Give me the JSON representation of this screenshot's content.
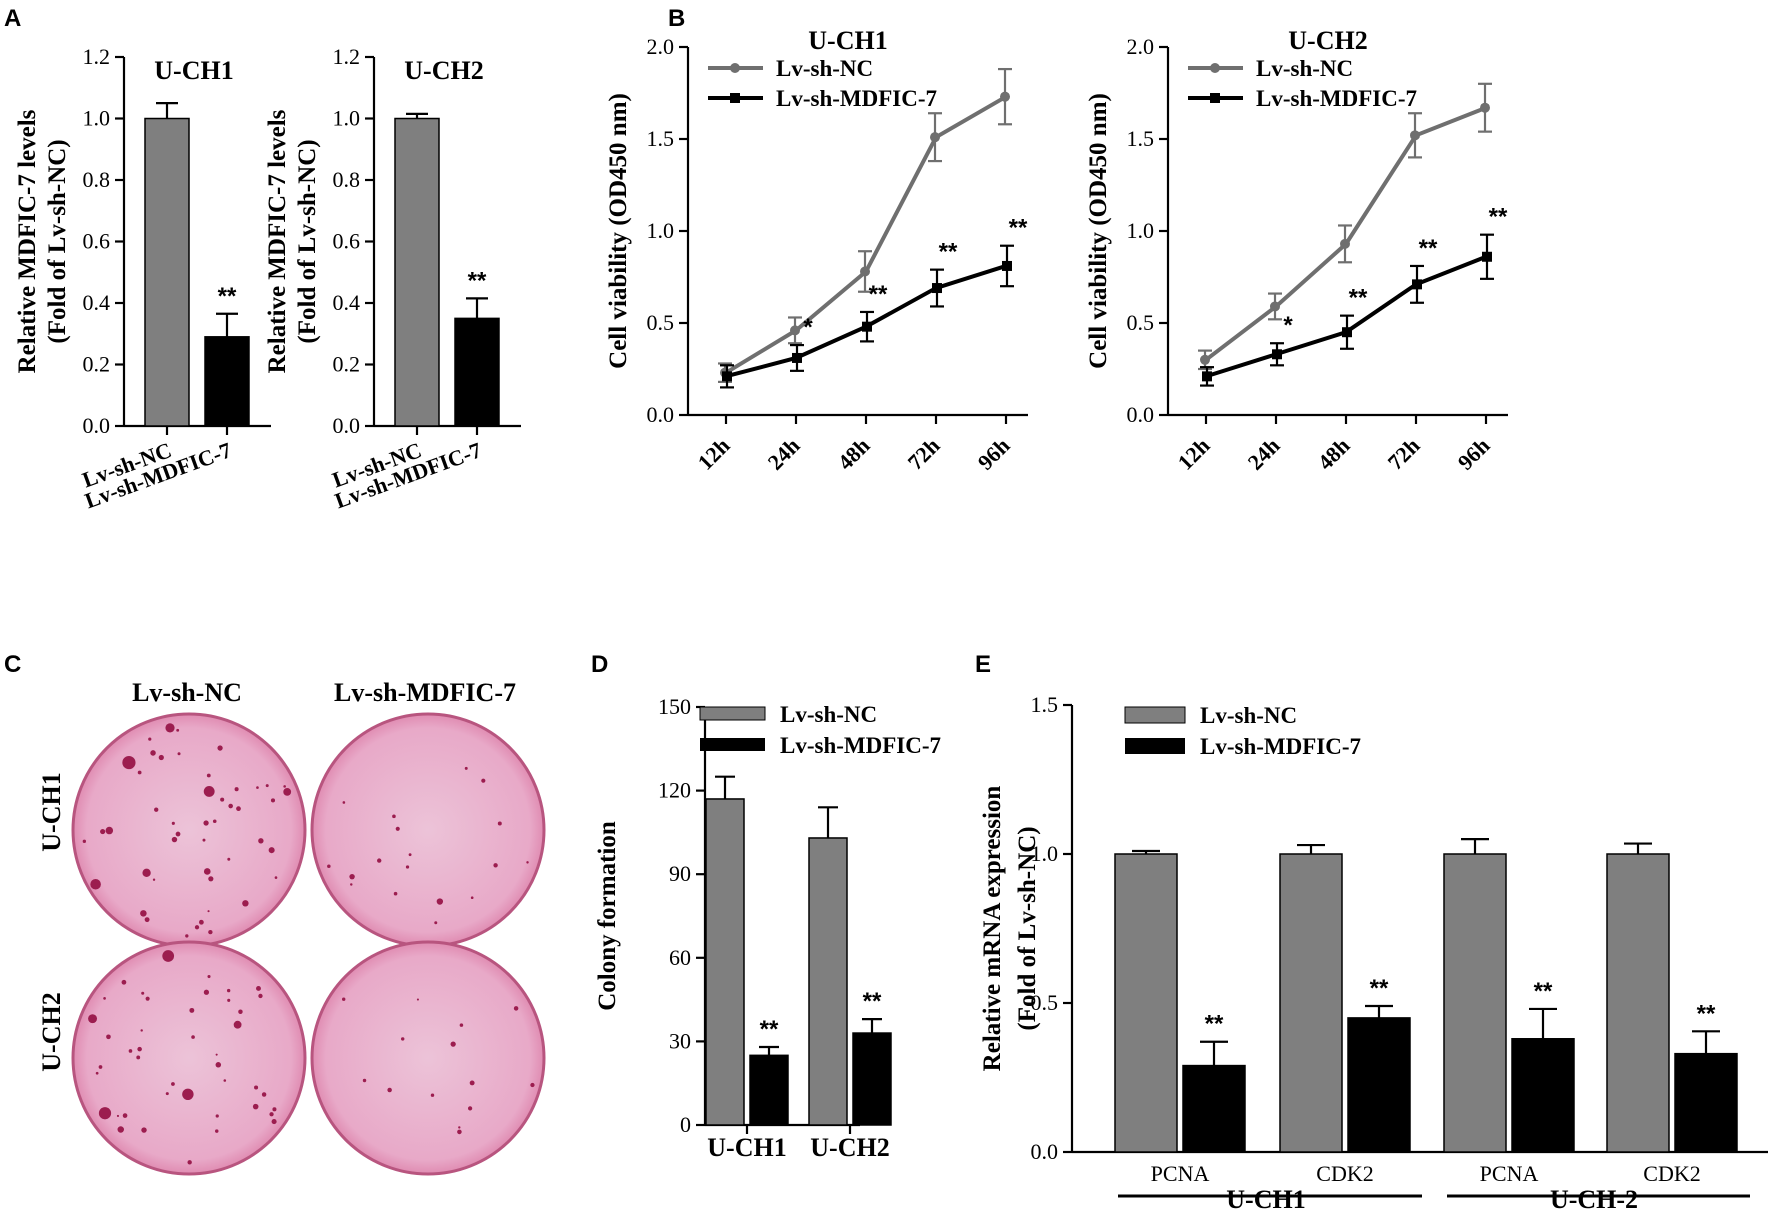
{
  "figure": {
    "panel_labels": [
      "A",
      "B",
      "C",
      "D",
      "E"
    ]
  },
  "colors": {
    "nc": "#7f7f7f",
    "md": "#000000",
    "nc_line": "#6f6f6f",
    "dish_bg": "#e8a9c8",
    "dish_edge": "#b8557f",
    "colony": "#9c1d4f"
  },
  "chart_data": [
    {
      "id": "A1",
      "type": "bar",
      "title": "U-CH1",
      "categories": [
        "Lv-sh-NC",
        "Lv-sh-MDFIC-7"
      ],
      "values": [
        1.0,
        0.29
      ],
      "errors": [
        0.05,
        0.075
      ],
      "significance": [
        "",
        "**"
      ],
      "ylabel": "Relative MDFIC-7 levels",
      "ylabel2": "(Fold of Lv-sh-NC)",
      "ylim": [
        0,
        1.2
      ],
      "yticks": [
        "0.0",
        "0.2",
        "0.4",
        "0.6",
        "0.8",
        "1.0",
        "1.2"
      ]
    },
    {
      "id": "A2",
      "type": "bar",
      "title": "U-CH2",
      "categories": [
        "Lv-sh-NC",
        "Lv-sh-MDFIC-7"
      ],
      "values": [
        1.0,
        0.35
      ],
      "errors": [
        0.015,
        0.065
      ],
      "significance": [
        "",
        "**"
      ],
      "ylabel": "Relative MDFIC-7 levels",
      "ylabel2": "(Fold of Lv-sh-NC)",
      "ylim": [
        0,
        1.2
      ],
      "yticks": [
        "0.0",
        "0.2",
        "0.4",
        "0.6",
        "0.8",
        "1.0",
        "1.2"
      ]
    },
    {
      "id": "B1",
      "type": "line",
      "title": "U-CH1",
      "x": [
        "12h",
        "24h",
        "48h",
        "72h",
        "96h"
      ],
      "series": [
        {
          "name": "Lv-sh-NC",
          "values": [
            0.23,
            0.46,
            0.78,
            1.51,
            1.73
          ],
          "errors": [
            0.05,
            0.07,
            0.11,
            0.13,
            0.15
          ]
        },
        {
          "name": "Lv-sh-MDFIC-7",
          "values": [
            0.21,
            0.31,
            0.48,
            0.69,
            0.81
          ],
          "errors": [
            0.06,
            0.07,
            0.08,
            0.1,
            0.11
          ]
        }
      ],
      "significance": [
        "",
        "*",
        "**",
        "**",
        "**"
      ],
      "ylabel": "Cell viability (OD450 nm)",
      "ylim": [
        0,
        2.0
      ],
      "yticks": [
        "0.0",
        "0.5",
        "1.0",
        "1.5",
        "2.0"
      ]
    },
    {
      "id": "B2",
      "type": "line",
      "title": "U-CH2",
      "x": [
        "12h",
        "24h",
        "48h",
        "72h",
        "96h"
      ],
      "series": [
        {
          "name": "Lv-sh-NC",
          "values": [
            0.3,
            0.59,
            0.93,
            1.52,
            1.67
          ],
          "errors": [
            0.05,
            0.07,
            0.1,
            0.12,
            0.13
          ]
        },
        {
          "name": "Lv-sh-MDFIC-7",
          "values": [
            0.21,
            0.33,
            0.45,
            0.71,
            0.86
          ],
          "errors": [
            0.05,
            0.06,
            0.09,
            0.1,
            0.12
          ]
        }
      ],
      "significance": [
        "",
        "*",
        "**",
        "**",
        "**"
      ],
      "ylabel": "Cell viability (OD450 nm)",
      "ylim": [
        0,
        2.0
      ],
      "yticks": [
        "0.0",
        "0.5",
        "1.0",
        "1.5",
        "2.0"
      ]
    },
    {
      "id": "D",
      "type": "bar",
      "categories": [
        "U-CH1",
        "U-CH2"
      ],
      "series": [
        {
          "name": "Lv-sh-NC",
          "values": [
            117,
            103
          ],
          "errors": [
            8,
            11
          ]
        },
        {
          "name": "Lv-sh-MDFIC-7",
          "values": [
            25,
            33
          ],
          "errors": [
            3,
            5
          ]
        }
      ],
      "significance": [
        "**",
        "**"
      ],
      "ylabel": "Colony formation",
      "ylim": [
        0,
        150
      ],
      "yticks": [
        "0",
        "30",
        "60",
        "90",
        "120",
        "150"
      ]
    },
    {
      "id": "E",
      "type": "bar",
      "categories": [
        "PCNA",
        "CDK2",
        "PCNA",
        "CDK2"
      ],
      "groups": [
        "U-CH1",
        "U-CH-2"
      ],
      "series": [
        {
          "name": "Lv-sh-NC",
          "values": [
            1.0,
            1.0,
            1.0,
            1.0
          ],
          "errors": [
            0.01,
            0.03,
            0.05,
            0.035
          ]
        },
        {
          "name": "Lv-sh-MDFIC-7",
          "values": [
            0.29,
            0.45,
            0.38,
            0.33
          ],
          "errors": [
            0.08,
            0.04,
            0.1,
            0.075
          ]
        }
      ],
      "significance": [
        "**",
        "**",
        "**",
        "**"
      ],
      "ylabel": "Relative mRNA expression",
      "ylabel2": "(Fold of Lv-sh-NC)",
      "ylim": [
        0,
        1.5
      ],
      "yticks": [
        "0.0",
        "0.5",
        "1.0",
        "1.5"
      ]
    }
  ],
  "panel_c": {
    "columns": [
      "Lv-sh-NC",
      "Lv-sh-MDFIC-7"
    ],
    "rows": [
      "U-CH1",
      "U-CH2"
    ]
  }
}
